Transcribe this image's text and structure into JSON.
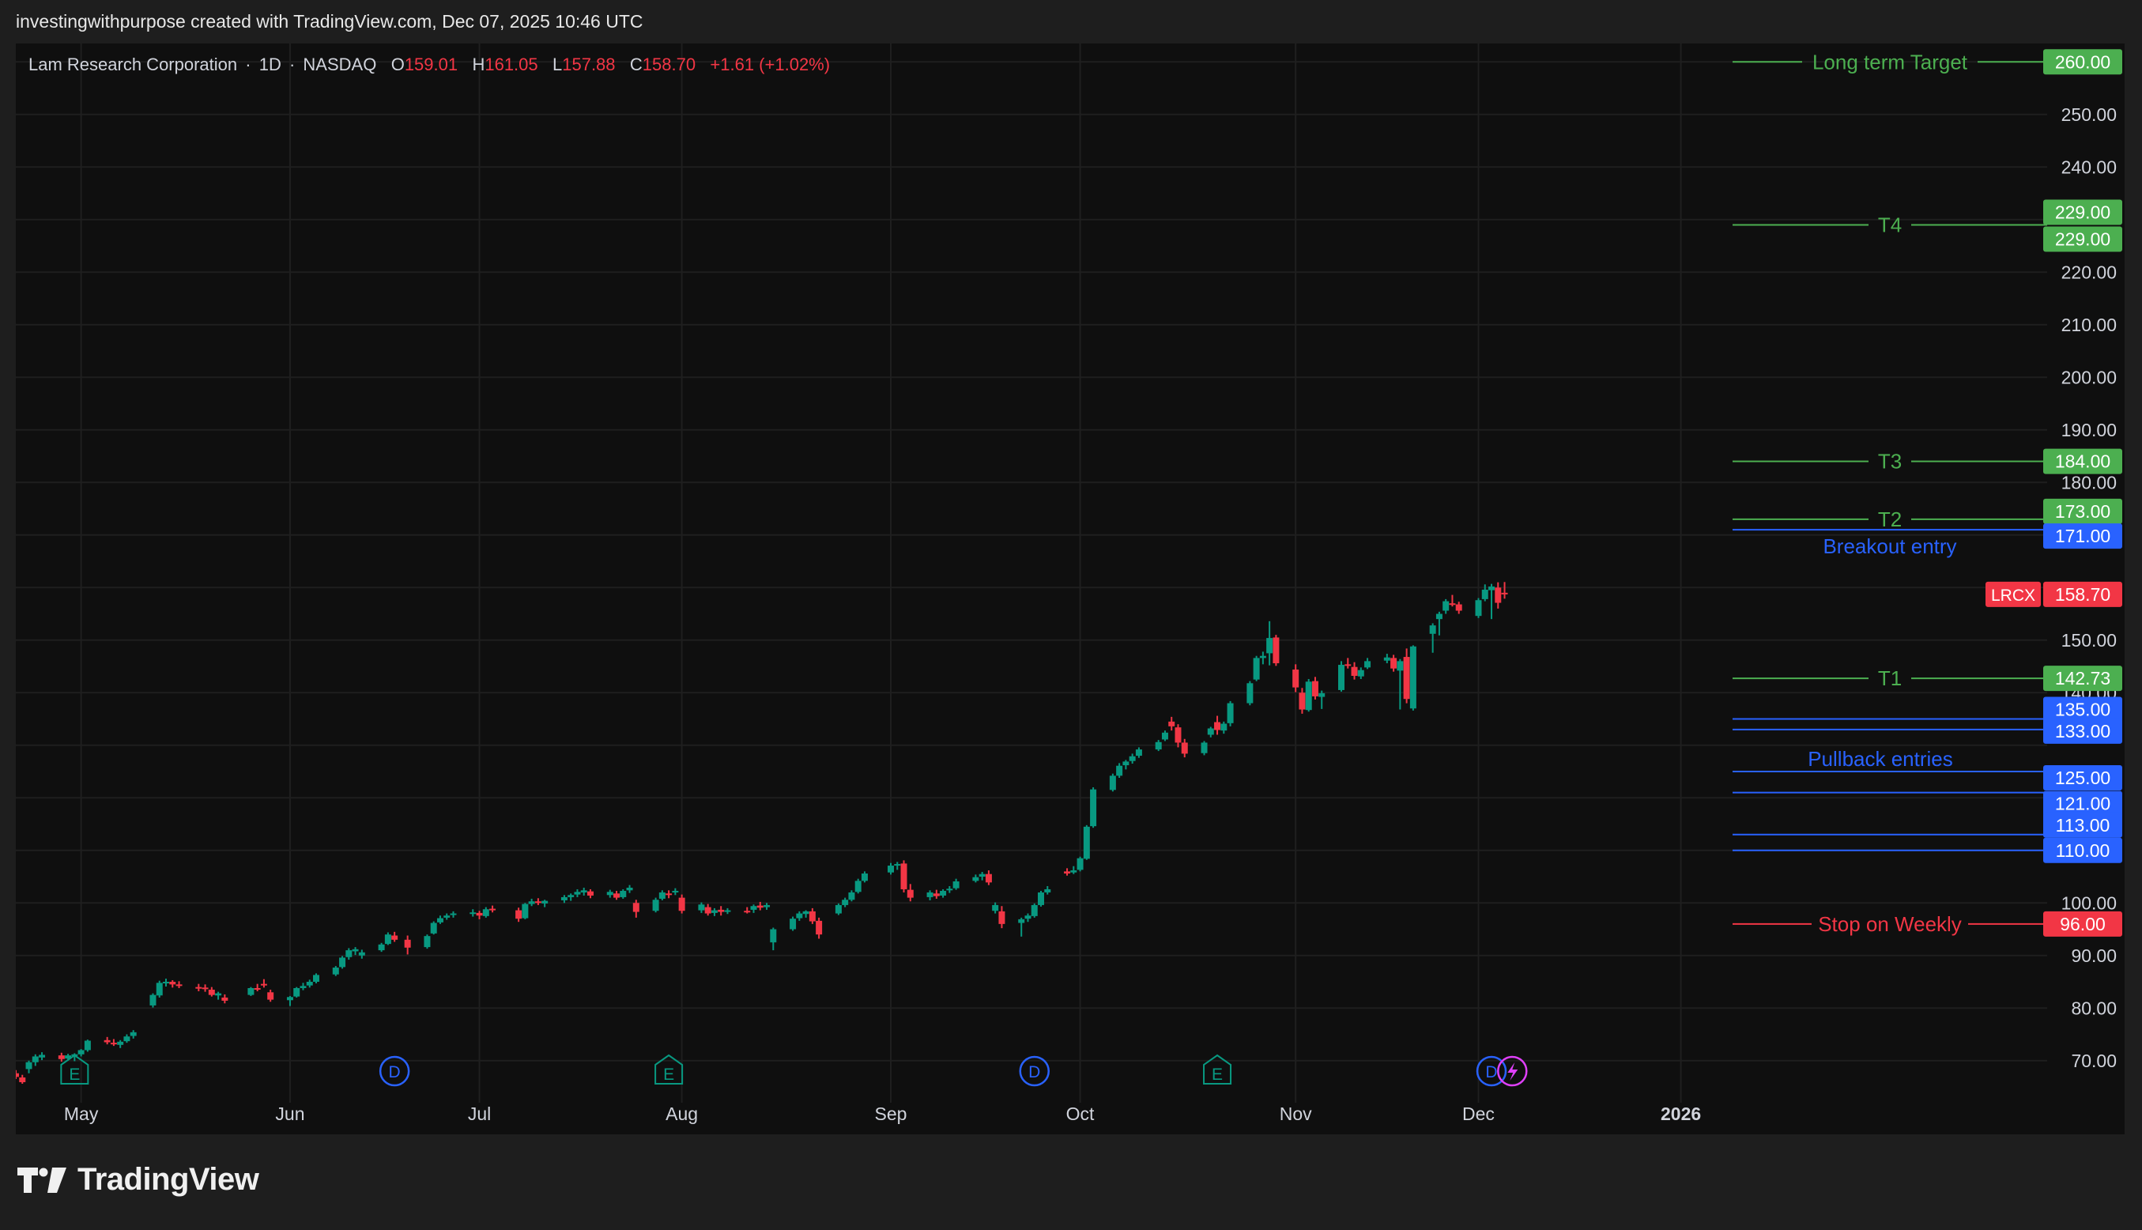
{
  "caption": "investingwithpurpose created with TradingView.com, Dec 07, 2025 10:46 UTC",
  "brand": {
    "name": "TradingView",
    "logo_icon": "tradingview-logo-icon"
  },
  "colors": {
    "up": "#089981",
    "down": "#f23645",
    "target": "#4caf50",
    "entry": "#2962ff",
    "stop": "#f23645",
    "grid": "#1f1f1f",
    "axis_text": "#d1d4dc",
    "bg": "#0f0f0f"
  },
  "header": {
    "symbol_name": "Lam Research Corporation",
    "interval": "1D",
    "exchange": "NASDAQ",
    "o_label": "O",
    "o_value": "159.01",
    "h_label": "H",
    "h_value": "161.05",
    "l_label": "L",
    "l_value": "157.88",
    "c_label": "C",
    "c_value": "158.70",
    "change": "+1.61 (+1.02%)"
  },
  "chart_data": {
    "type": "candlestick",
    "symbol": "LRCX",
    "ylim": [
      65,
      262
    ],
    "y_ticks": [
      "70.00",
      "80.00",
      "90.00",
      "100.00",
      "140.00",
      "150.00",
      "180.00",
      "190.00",
      "200.00",
      "210.00",
      "220.00",
      "240.00",
      "250.00"
    ],
    "x_axis": [
      {
        "label": "May",
        "date": "2025-05-01"
      },
      {
        "label": "Jun",
        "date": "2025-06-02"
      },
      {
        "label": "Jul",
        "date": "2025-07-01"
      },
      {
        "label": "Aug",
        "date": "2025-08-01"
      },
      {
        "label": "Sep",
        "date": "2025-09-02"
      },
      {
        "label": "Oct",
        "date": "2025-10-01"
      },
      {
        "label": "Nov",
        "date": "2025-11-03"
      },
      {
        "label": "Dec",
        "date": "2025-12-01"
      },
      {
        "label": "2026",
        "date": "2026-01-01"
      }
    ],
    "last_price": {
      "label": "LRCX",
      "value": "158.70"
    },
    "levels": [
      {
        "label": "Long term Target",
        "value": 260.0,
        "tag": "260.00",
        "kind": "target"
      },
      {
        "label": "",
        "value": 229.0,
        "tag": "229.00",
        "kind": "target"
      },
      {
        "label": "T4",
        "value": 229.0,
        "tag": "229.00",
        "kind": "target"
      },
      {
        "label": "T3",
        "value": 184.0,
        "tag": "184.00",
        "kind": "target"
      },
      {
        "label": "T2",
        "value": 173.0,
        "tag": "173.00",
        "kind": "target"
      },
      {
        "label": "Breakout entry",
        "value": 171.0,
        "tag": "171.00",
        "kind": "entry"
      },
      {
        "label": "T1",
        "value": 142.73,
        "tag": "142.73",
        "kind": "target"
      },
      {
        "label": "",
        "value": 135.0,
        "tag": "135.00",
        "kind": "entry"
      },
      {
        "label": "Pullback entries",
        "value": 133.0,
        "tag": "133.00",
        "kind": "entry"
      },
      {
        "label": "",
        "value": 125.0,
        "tag": "125.00",
        "kind": "entry"
      },
      {
        "label": "",
        "value": 121.0,
        "tag": "121.00",
        "kind": "entry"
      },
      {
        "label": "",
        "value": 113.0,
        "tag": "113.00",
        "kind": "entry"
      },
      {
        "label": "",
        "value": 110.0,
        "tag": "110.00",
        "kind": "entry"
      },
      {
        "label": "Stop on Weekly",
        "value": 96.0,
        "tag": "96.00",
        "kind": "stop"
      }
    ],
    "events": [
      {
        "type": "E",
        "date": "2025-04-30"
      },
      {
        "type": "D",
        "date": "2025-06-18"
      },
      {
        "type": "E",
        "date": "2025-07-30"
      },
      {
        "type": "D",
        "date": "2025-09-24"
      },
      {
        "type": "E",
        "date": "2025-10-22"
      },
      {
        "type": "D",
        "date": "2025-12-03"
      },
      {
        "type": "S",
        "date": "2025-12-04"
      }
    ],
    "candles": [
      [
        "2025-04-21",
        67.6,
        68.2,
        66.5,
        66.9
      ],
      [
        "2025-04-22",
        66.8,
        67.3,
        65.6,
        65.9
      ],
      [
        "2025-04-23",
        68.4,
        70.0,
        67.6,
        69.7
      ],
      [
        "2025-04-24",
        69.7,
        71.2,
        69.0,
        70.8
      ],
      [
        "2025-04-25",
        70.6,
        71.6,
        70.1,
        71.1
      ],
      [
        "2025-04-28",
        71.0,
        71.5,
        69.8,
        70.3
      ],
      [
        "2025-04-29",
        70.4,
        71.3,
        70.0,
        71.0
      ],
      [
        "2025-04-30",
        70.9,
        71.4,
        69.9,
        71.2
      ],
      [
        "2025-05-01",
        71.2,
        72.2,
        70.8,
        72.0
      ],
      [
        "2025-05-02",
        72.0,
        74.0,
        71.7,
        73.8
      ],
      [
        "2025-05-05",
        73.9,
        74.5,
        73.1,
        73.5
      ],
      [
        "2025-05-06",
        73.4,
        74.1,
        72.8,
        73.1
      ],
      [
        "2025-05-07",
        73.0,
        73.9,
        72.4,
        73.6
      ],
      [
        "2025-05-08",
        73.7,
        75.0,
        73.4,
        74.6
      ],
      [
        "2025-05-09",
        74.7,
        75.8,
        74.2,
        75.4
      ],
      [
        "2025-05-12",
        80.5,
        82.8,
        80.1,
        82.5
      ],
      [
        "2025-05-13",
        82.4,
        85.2,
        82.0,
        84.8
      ],
      [
        "2025-05-14",
        84.9,
        85.6,
        84.1,
        85.0
      ],
      [
        "2025-05-15",
        85.0,
        85.3,
        83.9,
        84.5
      ],
      [
        "2025-05-16",
        84.5,
        85.1,
        83.8,
        84.2
      ],
      [
        "2025-05-19",
        84.0,
        84.6,
        83.2,
        83.8
      ],
      [
        "2025-05-20",
        83.9,
        84.5,
        83.1,
        83.6
      ],
      [
        "2025-05-21",
        83.5,
        84.0,
        82.2,
        82.5
      ],
      [
        "2025-05-22",
        82.4,
        83.1,
        81.6,
        82.8
      ],
      [
        "2025-05-23",
        82.0,
        82.6,
        80.9,
        81.4
      ],
      [
        "2025-05-27",
        82.5,
        84.0,
        82.3,
        83.8
      ],
      [
        "2025-05-28",
        83.8,
        84.6,
        83.2,
        83.6
      ],
      [
        "2025-05-29",
        84.6,
        85.5,
        83.9,
        84.4
      ],
      [
        "2025-05-30",
        83.0,
        83.5,
        81.2,
        81.6
      ],
      [
        "2025-06-02",
        81.5,
        82.3,
        80.4,
        82.1
      ],
      [
        "2025-06-03",
        82.2,
        84.0,
        82.0,
        83.8
      ],
      [
        "2025-06-04",
        83.8,
        84.8,
        83.4,
        84.2
      ],
      [
        "2025-06-05",
        84.3,
        85.4,
        83.9,
        85.0
      ],
      [
        "2025-06-06",
        85.0,
        86.6,
        84.7,
        86.3
      ],
      [
        "2025-06-09",
        86.4,
        88.0,
        86.1,
        87.7
      ],
      [
        "2025-06-10",
        87.8,
        89.9,
        87.5,
        89.6
      ],
      [
        "2025-06-11",
        89.7,
        91.4,
        89.2,
        91.0
      ],
      [
        "2025-06-12",
        90.8,
        91.6,
        90.1,
        91.2
      ],
      [
        "2025-06-13",
        90.0,
        91.1,
        89.4,
        90.6
      ],
      [
        "2025-06-16",
        91.0,
        92.4,
        90.7,
        92.1
      ],
      [
        "2025-06-17",
        92.2,
        94.4,
        92.0,
        94.0
      ],
      [
        "2025-06-18",
        93.8,
        94.5,
        92.6,
        93.0
      ],
      [
        "2025-06-20",
        93.0,
        93.8,
        90.2,
        91.5
      ],
      [
        "2025-06-23",
        91.6,
        94.0,
        91.3,
        93.7
      ],
      [
        "2025-06-24",
        94.2,
        96.5,
        94.0,
        96.2
      ],
      [
        "2025-06-25",
        96.3,
        97.6,
        96.0,
        97.1
      ],
      [
        "2025-06-26",
        97.2,
        98.0,
        96.8,
        97.6
      ],
      [
        "2025-06-27",
        97.7,
        98.4,
        97.2,
        98.0
      ],
      [
        "2025-06-30",
        98.0,
        98.8,
        97.4,
        98.2
      ],
      [
        "2025-07-01",
        98.1,
        98.5,
        96.9,
        97.6
      ],
      [
        "2025-07-02",
        97.5,
        99.2,
        97.2,
        98.8
      ],
      [
        "2025-07-03",
        98.9,
        99.5,
        98.2,
        98.7
      ],
      [
        "2025-07-07",
        98.6,
        99.1,
        96.4,
        97.0
      ],
      [
        "2025-07-08",
        97.1,
        100.0,
        96.9,
        99.8
      ],
      [
        "2025-07-09",
        99.8,
        100.8,
        99.4,
        100.3
      ],
      [
        "2025-07-10",
        100.3,
        100.9,
        99.6,
        100.1
      ],
      [
        "2025-07-11",
        99.9,
        100.6,
        99.2,
        100.4
      ],
      [
        "2025-07-14",
        100.5,
        101.5,
        100.0,
        101.1
      ],
      [
        "2025-07-15",
        101.1,
        101.8,
        100.4,
        101.5
      ],
      [
        "2025-07-16",
        101.6,
        102.6,
        101.1,
        102.1
      ],
      [
        "2025-07-17",
        102.0,
        102.9,
        101.4,
        102.4
      ],
      [
        "2025-07-18",
        102.2,
        102.6,
        100.9,
        101.4
      ],
      [
        "2025-07-21",
        101.5,
        102.5,
        101.0,
        102.1
      ],
      [
        "2025-07-22",
        101.8,
        102.3,
        100.6,
        101.0
      ],
      [
        "2025-07-23",
        101.1,
        102.6,
        100.8,
        102.3
      ],
      [
        "2025-07-24",
        102.4,
        103.4,
        101.9,
        102.9
      ],
      [
        "2025-07-25",
        100.0,
        100.6,
        97.2,
        98.3
      ],
      [
        "2025-07-28",
        98.5,
        101.0,
        98.2,
        100.6
      ],
      [
        "2025-07-29",
        100.8,
        102.4,
        100.5,
        102.0
      ],
      [
        "2025-07-30",
        101.8,
        102.4,
        100.9,
        101.5
      ],
      [
        "2025-07-31",
        102.0,
        102.8,
        101.5,
        102.3
      ],
      [
        "2025-08-01",
        101.0,
        101.6,
        98.0,
        98.5
      ],
      [
        "2025-08-04",
        98.6,
        100.1,
        98.1,
        99.7
      ],
      [
        "2025-08-05",
        99.2,
        99.8,
        97.6,
        98.0
      ],
      [
        "2025-08-06",
        98.1,
        99.0,
        97.5,
        98.6
      ],
      [
        "2025-08-07",
        98.7,
        99.4,
        97.6,
        98.3
      ],
      [
        "2025-08-08",
        98.4,
        99.0,
        97.9,
        98.6
      ],
      [
        "2025-08-11",
        98.5,
        99.2,
        98.0,
        98.3
      ],
      [
        "2025-08-12",
        98.7,
        99.7,
        98.1,
        99.4
      ],
      [
        "2025-08-13",
        99.5,
        100.2,
        98.6,
        99.1
      ],
      [
        "2025-08-14",
        99.2,
        100.0,
        98.7,
        99.6
      ],
      [
        "2025-08-15",
        92.5,
        95.3,
        91.0,
        95.0
      ],
      [
        "2025-08-18",
        95.0,
        97.4,
        94.7,
        97.0
      ],
      [
        "2025-08-19",
        97.1,
        98.4,
        96.6,
        98.0
      ],
      [
        "2025-08-20",
        97.9,
        98.6,
        97.2,
        98.4
      ],
      [
        "2025-08-21",
        98.4,
        99.0,
        96.0,
        96.5
      ],
      [
        "2025-08-22",
        96.6,
        97.2,
        93.2,
        94.0
      ],
      [
        "2025-08-25",
        98.0,
        99.9,
        97.7,
        99.6
      ],
      [
        "2025-08-26",
        99.6,
        101.0,
        99.2,
        100.6
      ],
      [
        "2025-08-27",
        100.6,
        102.4,
        100.3,
        102.0
      ],
      [
        "2025-08-28",
        102.1,
        104.6,
        101.8,
        104.2
      ],
      [
        "2025-08-29",
        104.2,
        106.0,
        103.9,
        105.6
      ],
      [
        "2025-09-02",
        105.8,
        107.6,
        105.4,
        107.1
      ],
      [
        "2025-09-03",
        107.1,
        107.8,
        106.3,
        107.4
      ],
      [
        "2025-09-04",
        107.5,
        108.1,
        102.0,
        102.6
      ],
      [
        "2025-09-05",
        102.5,
        103.6,
        100.3,
        101.0
      ],
      [
        "2025-09-08",
        101.1,
        102.4,
        100.5,
        102.0
      ],
      [
        "2025-09-09",
        101.8,
        102.5,
        100.8,
        101.3
      ],
      [
        "2025-09-10",
        101.4,
        102.6,
        101.0,
        102.3
      ],
      [
        "2025-09-11",
        102.4,
        103.2,
        101.9,
        102.7
      ],
      [
        "2025-09-12",
        102.8,
        104.6,
        102.5,
        104.1
      ],
      [
        "2025-09-15",
        104.2,
        105.4,
        103.9,
        104.9
      ],
      [
        "2025-09-16",
        105.0,
        105.9,
        104.3,
        105.5
      ],
      [
        "2025-09-17",
        105.5,
        106.2,
        103.4,
        103.9
      ],
      [
        "2025-09-18",
        98.5,
        100.1,
        98.0,
        99.6
      ],
      [
        "2025-09-19",
        98.4,
        99.4,
        95.2,
        96.0
      ],
      [
        "2025-09-22",
        96.2,
        97.2,
        93.6,
        96.9
      ],
      [
        "2025-09-23",
        97.0,
        98.0,
        96.4,
        97.6
      ],
      [
        "2025-09-24",
        97.5,
        99.9,
        97.2,
        99.6
      ],
      [
        "2025-09-25",
        99.6,
        102.3,
        99.3,
        102.0
      ],
      [
        "2025-09-26",
        102.0,
        103.2,
        101.6,
        102.6
      ],
      [
        "2025-09-29",
        106.0,
        106.6,
        105.2,
        105.6
      ],
      [
        "2025-09-30",
        105.8,
        107.0,
        105.5,
        106.2
      ],
      [
        "2025-10-01",
        106.3,
        108.8,
        106.0,
        108.5
      ],
      [
        "2025-10-02",
        108.4,
        114.8,
        108.2,
        114.5
      ],
      [
        "2025-10-03",
        114.6,
        122.0,
        114.3,
        121.6
      ],
      [
        "2025-10-06",
        121.5,
        124.6,
        121.2,
        124.2
      ],
      [
        "2025-10-07",
        124.2,
        126.6,
        123.8,
        126.1
      ],
      [
        "2025-10-08",
        126.2,
        127.2,
        125.4,
        126.9
      ],
      [
        "2025-10-09",
        127.0,
        128.4,
        126.5,
        127.9
      ],
      [
        "2025-10-10",
        128.0,
        129.6,
        127.6,
        129.2
      ],
      [
        "2025-10-13",
        129.2,
        131.0,
        128.9,
        130.6
      ],
      [
        "2025-10-14",
        131.1,
        132.8,
        130.8,
        132.4
      ],
      [
        "2025-10-15",
        134.5,
        135.4,
        132.8,
        133.6
      ],
      [
        "2025-10-16",
        133.4,
        134.0,
        129.6,
        130.5
      ],
      [
        "2025-10-17",
        130.5,
        131.2,
        127.7,
        128.4
      ],
      [
        "2025-10-20",
        128.5,
        130.8,
        128.1,
        130.5
      ],
      [
        "2025-10-21",
        132.0,
        133.5,
        131.5,
        133.2
      ],
      [
        "2025-10-22",
        134.4,
        135.6,
        132.0,
        132.9
      ],
      [
        "2025-10-23",
        132.8,
        134.5,
        132.2,
        134.1
      ],
      [
        "2025-10-24",
        134.2,
        138.4,
        133.6,
        138.0
      ],
      [
        "2025-10-27",
        138.0,
        142.2,
        137.6,
        141.8
      ],
      [
        "2025-10-28",
        142.5,
        147.0,
        142.2,
        146.6
      ],
      [
        "2025-10-29",
        146.6,
        147.8,
        145.4,
        147.0
      ],
      [
        "2025-10-30",
        147.5,
        153.6,
        145.2,
        150.4
      ],
      [
        "2025-10-31",
        150.5,
        151.0,
        145.1,
        145.6
      ],
      [
        "2025-11-03",
        144.4,
        145.4,
        140.1,
        141.0
      ],
      [
        "2025-11-04",
        140.0,
        140.9,
        136.0,
        136.8
      ],
      [
        "2025-11-05",
        136.7,
        142.6,
        136.4,
        142.1
      ],
      [
        "2025-11-06",
        142.2,
        143.0,
        138.7,
        139.3
      ],
      [
        "2025-11-07",
        139.2,
        140.4,
        136.9,
        139.9
      ],
      [
        "2025-11-10",
        140.5,
        146.0,
        140.2,
        145.3
      ],
      [
        "2025-11-11",
        145.4,
        146.6,
        144.6,
        145.1
      ],
      [
        "2025-11-12",
        144.9,
        145.8,
        142.5,
        143.2
      ],
      [
        "2025-11-13",
        143.1,
        144.8,
        142.6,
        144.3
      ],
      [
        "2025-11-14",
        144.8,
        146.6,
        144.5,
        146.0
      ],
      [
        "2025-11-17",
        146.1,
        147.4,
        145.6,
        146.7
      ],
      [
        "2025-11-18",
        146.6,
        147.2,
        144.0,
        144.6
      ],
      [
        "2025-11-19",
        144.2,
        146.4,
        136.8,
        146.0
      ],
      [
        "2025-11-20",
        146.8,
        148.4,
        138.0,
        138.8
      ],
      [
        "2025-11-21",
        137.0,
        149.0,
        136.6,
        148.8
      ],
      [
        "2025-11-24",
        151.2,
        153.2,
        147.6,
        152.8
      ],
      [
        "2025-11-25",
        154.0,
        155.4,
        150.9,
        155.0
      ],
      [
        "2025-11-26",
        155.6,
        157.8,
        155.0,
        157.4
      ],
      [
        "2025-11-27",
        157.0,
        158.6,
        156.4,
        156.8
      ],
      [
        "2025-11-28",
        156.8,
        157.3,
        155.0,
        155.6
      ],
      [
        "2025-12-01",
        154.6,
        158.0,
        154.2,
        157.6
      ],
      [
        "2025-12-02",
        157.8,
        160.6,
        157.4,
        159.6
      ],
      [
        "2025-12-03",
        159.5,
        160.7,
        154.0,
        160.2
      ],
      [
        "2025-12-04",
        160.0,
        161.0,
        156.0,
        157.1
      ],
      [
        "2025-12-05",
        159.01,
        161.05,
        157.88,
        158.7
      ]
    ]
  }
}
